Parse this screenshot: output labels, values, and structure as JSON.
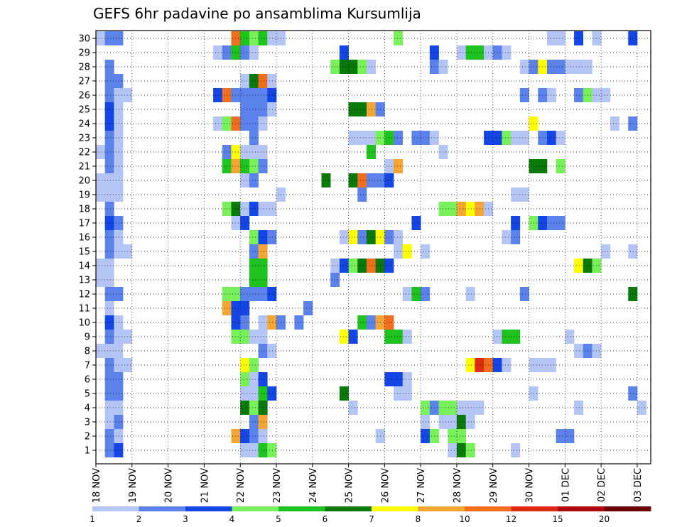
{
  "chart_data": {
    "type": "heatmap",
    "title": "GEFS 6hr padavine po ansamblima Kursumlija",
    "xlabel": "",
    "ylabel": "",
    "x_ticks": [
      "18 NOV",
      "19 NOV",
      "20 NOV",
      "21 NOV",
      "22 NOV",
      "23 NOV",
      "24 NOV",
      "25 NOV",
      "26 NOV",
      "27 NOV",
      "28 NOV",
      "29 NOV",
      "30 NOV",
      "01 DEC",
      "02 DEC",
      "03 DEC"
    ],
    "y_ticks": [
      "1",
      "2",
      "3",
      "4",
      "5",
      "6",
      "7",
      "8",
      "9",
      "10",
      "11",
      "12",
      "13",
      "14",
      "15",
      "16",
      "17",
      "18",
      "19",
      "20",
      "21",
      "22",
      "23",
      "24",
      "25",
      "26",
      "27",
      "28",
      "29",
      "30"
    ],
    "time_start": "18 NOV 00",
    "time_step_hours": 6,
    "n_steps": 61,
    "members": 30,
    "grid": true,
    "legend": "bottom",
    "color_levels": [
      1,
      2,
      3,
      4,
      5,
      6,
      7,
      8,
      10,
      12,
      15,
      20
    ],
    "colors": [
      "#b4c5f5",
      "#5a82ea",
      "#1446e6",
      "#78f05a",
      "#1ec31e",
      "#0a780a",
      "#ffff00",
      "#f5a533",
      "#f06e1e",
      "#dc2d14",
      "#aa0a0a",
      "#6e0000"
    ],
    "colorbar_labels": [
      "1",
      "2",
      "3",
      "4",
      "5",
      "6",
      "7",
      "8",
      "10",
      "12",
      "15",
      "20"
    ],
    "series": [
      {
        "member": "30",
        "values": {
          "0": 1,
          "1": 2,
          "2": 2,
          "15": 10,
          "16": 5,
          "17": 4,
          "18": 5,
          "19": 1,
          "20": 1,
          "33": 4,
          "50": 1,
          "51": 1,
          "53": 3,
          "55": 1,
          "59": 3
        }
      },
      {
        "member": "29",
        "values": {
          "13": 1,
          "14": 2,
          "15": 5,
          "16": 2,
          "17": 1,
          "27": 3,
          "37": 3,
          "40": 1,
          "41": 5,
          "42": 5,
          "43": 1,
          "44": 2,
          "45": 1
        }
      },
      {
        "member": "28",
        "values": {
          "1": 2,
          "26": 4,
          "27": 6,
          "28": 6,
          "29": 4,
          "30": 1,
          "37": 2,
          "38": 1,
          "47": 1,
          "48": 2,
          "49": 7,
          "50": 2,
          "51": 2,
          "52": 1,
          "53": 1,
          "54": 1
        }
      },
      {
        "member": "27",
        "values": {
          "1": 2,
          "2": 2,
          "16": 1,
          "17": 6,
          "18": 10,
          "19": 1
        }
      },
      {
        "member": "26",
        "values": {
          "1": 2,
          "2": 1,
          "3": 1,
          "13": 3,
          "14": 10,
          "15": 2,
          "16": 2,
          "17": 2,
          "18": 2,
          "19": 3,
          "47": 2,
          "49": 2,
          "50": 1,
          "53": 2,
          "54": 4,
          "55": 1,
          "56": 1
        }
      },
      {
        "member": "25",
        "values": {
          "1": 3,
          "2": 1,
          "16": 2,
          "17": 2,
          "18": 2,
          "19": 1,
          "28": 6,
          "29": 6,
          "30": 8,
          "31": 2
        }
      },
      {
        "member": "24",
        "values": {
          "1": 3,
          "2": 1,
          "13": 1,
          "14": 4,
          "15": 10,
          "16": 2,
          "17": 2,
          "18": 1,
          "48": 7,
          "57": 1,
          "59": 2
        }
      },
      {
        "member": "23",
        "values": {
          "1": 2,
          "2": 1,
          "17": 2,
          "28": 1,
          "29": 1,
          "30": 1,
          "31": 4,
          "32": 5,
          "33": 2,
          "35": 2,
          "36": 2,
          "37": 1,
          "43": 3,
          "44": 3,
          "45": 4,
          "46": 1,
          "47": 1,
          "49": 2,
          "50": 3,
          "51": 1
        }
      },
      {
        "member": "22",
        "values": {
          "0": 1,
          "1": 2,
          "2": 1,
          "14": 2,
          "15": 7,
          "16": 1,
          "17": 1,
          "18": 1,
          "30": 5,
          "38": 1
        }
      },
      {
        "member": "21",
        "values": {
          "1": 2,
          "2": 1,
          "14": 5,
          "15": 8,
          "16": 5,
          "17": 4,
          "18": 2,
          "32": 1,
          "33": 8,
          "48": 6,
          "49": 6,
          "51": 4
        }
      },
      {
        "member": "20",
        "values": {
          "0": 1,
          "1": 1,
          "2": 1,
          "16": 1,
          "17": 2,
          "25": 6,
          "28": 6,
          "29": 10,
          "30": 2,
          "31": 2,
          "32": 3
        }
      },
      {
        "member": "19",
        "values": {
          "0": 1,
          "1": 1,
          "2": 1,
          "20": 1,
          "29": 2,
          "46": 1,
          "47": 1
        }
      },
      {
        "member": "18",
        "values": {
          "1": 2,
          "14": 4,
          "15": 6,
          "16": 1,
          "17": 3,
          "18": 1,
          "19": 1,
          "38": 4,
          "39": 4,
          "40": 8,
          "41": 7,
          "42": 8,
          "43": 1
        }
      },
      {
        "member": "17",
        "values": {
          "1": 3,
          "2": 2,
          "15": 1,
          "16": 3,
          "35": 3,
          "46": 3,
          "48": 4,
          "49": 3,
          "50": 2,
          "51": 2
        }
      },
      {
        "member": "16",
        "values": {
          "1": 2,
          "2": 1,
          "17": 4,
          "18": 3,
          "19": 2,
          "27": 1,
          "28": 7,
          "29": 2,
          "30": 6,
          "31": 7,
          "32": 2,
          "33": 1,
          "45": 1,
          "46": 2
        }
      },
      {
        "member": "15",
        "values": {
          "1": 2,
          "2": 1,
          "3": 1,
          "17": 2,
          "18": 8,
          "33": 1,
          "34": 7,
          "36": 1,
          "56": 1,
          "59": 1
        }
      },
      {
        "member": "14",
        "values": {
          "0": 1,
          "1": 1,
          "17": 5,
          "18": 5,
          "26": 1,
          "27": 3,
          "28": 4,
          "29": 6,
          "30": 11,
          "31": 6,
          "32": 3,
          "53": 7,
          "54": 6,
          "55": 4
        }
      },
      {
        "member": "13",
        "values": {
          "0": 1,
          "1": 1,
          "17": 5,
          "18": 5,
          "26": 2
        }
      },
      {
        "member": "12",
        "values": {
          "1": 2,
          "2": 2,
          "14": 4,
          "15": 4,
          "16": 2,
          "17": 2,
          "18": 2,
          "19": 3,
          "34": 1,
          "35": 5,
          "36": 2,
          "41": 1,
          "47": 2,
          "59": 6
        }
      },
      {
        "member": "11",
        "values": {
          "1": 1,
          "14": 9,
          "15": 3,
          "16": 3,
          "23": 2
        }
      },
      {
        "member": "10",
        "values": {
          "1": 3,
          "2": 1,
          "15": 3,
          "16": 2,
          "18": 1,
          "19": 8,
          "20": 2,
          "22": 2,
          "29": 5,
          "30": 2,
          "31": 8,
          "32": 10
        }
      },
      {
        "member": "9",
        "values": {
          "1": 2,
          "2": 1,
          "3": 1,
          "15": 4,
          "16": 4,
          "17": 1,
          "18": 1,
          "27": 7,
          "28": 3,
          "32": 5,
          "33": 5,
          "34": 1,
          "44": 1,
          "45": 5,
          "46": 5,
          "52": 1
        }
      },
      {
        "member": "8",
        "values": {
          "0": 1,
          "1": 1,
          "2": 1,
          "18": 2,
          "19": 1,
          "53": 1,
          "54": 2,
          "55": 1
        }
      },
      {
        "member": "7",
        "values": {
          "1": 2,
          "2": 1,
          "3": 1,
          "16": 7,
          "17": 4,
          "41": 7,
          "42": 12,
          "43": 10,
          "44": 3,
          "45": 1,
          "48": 1,
          "49": 1,
          "50": 1
        }
      },
      {
        "member": "6",
        "values": {
          "1": 2,
          "2": 2,
          "16": 4,
          "17": 1,
          "18": 3,
          "32": 3,
          "33": 3,
          "34": 1
        }
      },
      {
        "member": "5",
        "values": {
          "1": 2,
          "2": 2,
          "16": 1,
          "17": 1,
          "18": 5,
          "19": 3,
          "27": 6,
          "33": 1,
          "34": 1,
          "48": 1,
          "59": 2
        }
      },
      {
        "member": "4",
        "values": {
          "1": 1,
          "2": 1,
          "16": 6,
          "17": 4,
          "18": 6,
          "28": 1,
          "36": 4,
          "37": 2,
          "38": 4,
          "39": 4,
          "40": 1,
          "41": 1,
          "42": 1,
          "53": 1,
          "60": 1
        }
      },
      {
        "member": "3",
        "values": {
          "1": 1,
          "2": 2,
          "17": 2,
          "18": 8,
          "36": 1,
          "38": 1,
          "39": 1,
          "40": 6,
          "41": 1
        }
      },
      {
        "member": "2",
        "values": {
          "1": 2,
          "2": 1,
          "15": 9,
          "16": 3,
          "17": 2,
          "18": 1,
          "31": 1,
          "36": 3,
          "37": 4,
          "39": 4,
          "40": 4,
          "51": 2,
          "52": 2
        }
      },
      {
        "member": "1",
        "values": {
          "1": 2,
          "2": 3,
          "16": 1,
          "17": 1,
          "18": 5,
          "19": 4,
          "39": 1,
          "40": 6,
          "41": 4,
          "46": 1
        }
      }
    ]
  }
}
